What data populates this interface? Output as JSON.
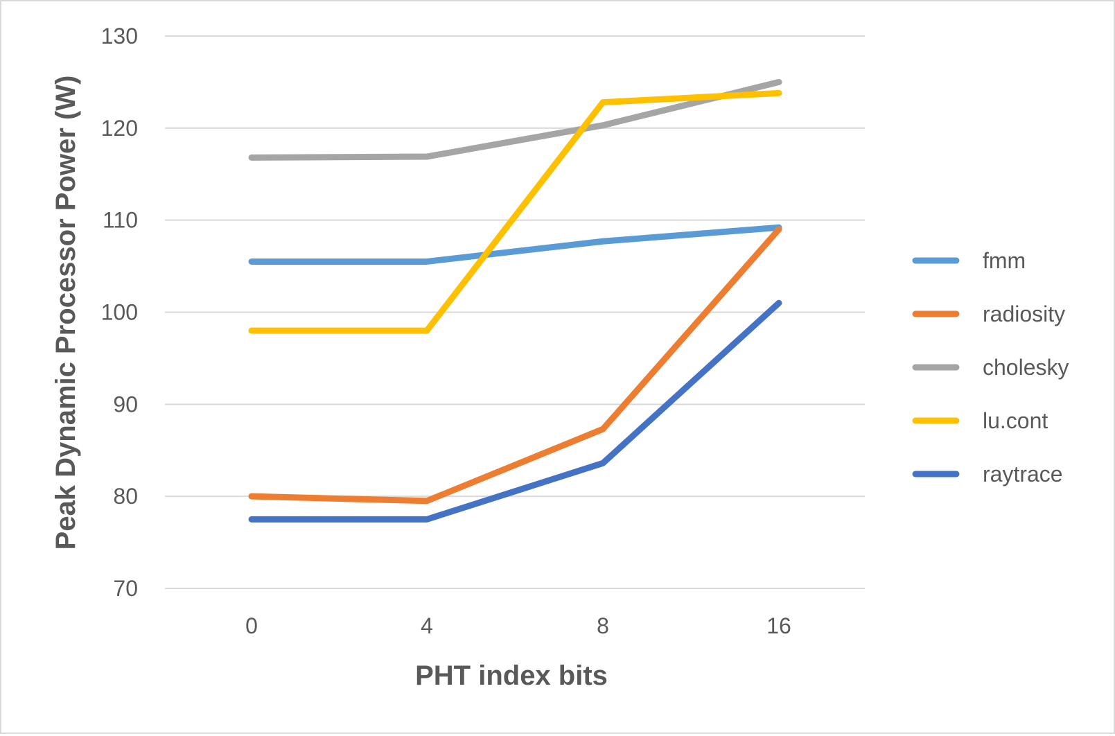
{
  "chart_data": {
    "type": "line",
    "title": "",
    "xlabel": "PHT index bits",
    "ylabel": "Peak Dynamic Processor Power (W)",
    "categories": [
      "0",
      "4",
      "8",
      "16"
    ],
    "ylim": [
      70,
      130
    ],
    "yticks": [
      70,
      80,
      90,
      100,
      110,
      120,
      130
    ],
    "grid": true,
    "legend_position": "right",
    "series": [
      {
        "name": "fmm",
        "color": "#5b9bd5",
        "values": [
          105.5,
          105.5,
          107.7,
          109.2
        ]
      },
      {
        "name": "radiosity",
        "color": "#ed7d31",
        "values": [
          80.0,
          79.5,
          87.3,
          109.0
        ]
      },
      {
        "name": "cholesky",
        "color": "#a5a5a5",
        "values": [
          116.8,
          116.9,
          120.3,
          125.0
        ]
      },
      {
        "name": "lu.cont",
        "color": "#ffc000",
        "values": [
          98.0,
          98.0,
          122.8,
          123.8
        ]
      },
      {
        "name": "raytrace",
        "color": "#4472c4",
        "values": [
          77.5,
          77.5,
          83.6,
          101.0
        ]
      }
    ]
  }
}
